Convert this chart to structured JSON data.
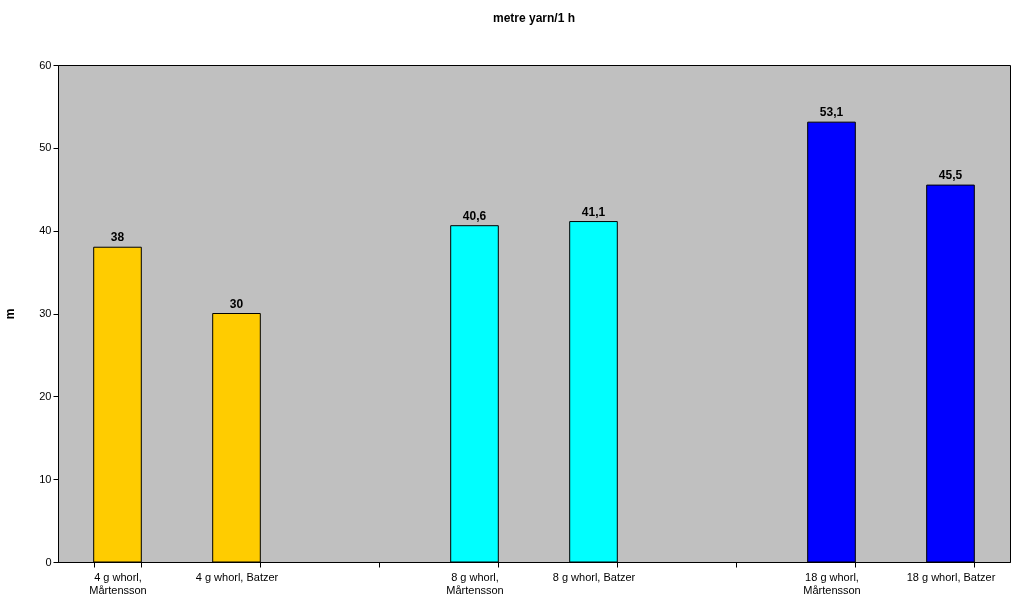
{
  "chart_data": {
    "type": "bar",
    "title": "metre yarn/1 h",
    "ylabel": "m",
    "categories": [
      "4 g whorl, Mårtensson",
      "4 g whorl, Batzer",
      null,
      "8 g whorl, Mårtensson",
      "8 g whorl, Batzer",
      null,
      "18 g whorl, Mårtensson",
      "18 g whorl, Batzer"
    ],
    "values": [
      38,
      30,
      null,
      40.6,
      41.1,
      null,
      53.1,
      45.5
    ],
    "colors": [
      "#ffcc00",
      "#ffcc00",
      null,
      "#00ffff",
      "#00ffff",
      null,
      "#0000ff",
      "#0000ff"
    ],
    "value_labels": [
      "38",
      "30",
      null,
      "40,6",
      "41,1",
      null,
      "53,1",
      "45,5"
    ],
    "ylim": [
      0,
      60
    ],
    "yticks": [
      0,
      10,
      20,
      30,
      40,
      50,
      60
    ],
    "grid": false
  }
}
